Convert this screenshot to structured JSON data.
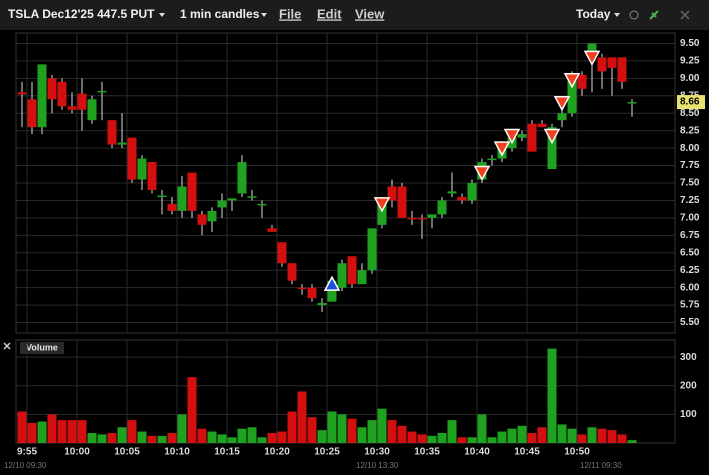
{
  "toolbar": {
    "symbol": "TSLA Dec12'25 447.5 PUT",
    "timeframe": "1 min candles",
    "menus": [
      "File",
      "Edit",
      "View"
    ],
    "range": "Today"
  },
  "volume_panel": {
    "title": "Volume"
  },
  "session_labels": [
    "12/10 09:30",
    "12/10 13:30",
    "12/11 09:30"
  ],
  "chart_data": {
    "type": "candlestick",
    "open": [
      8.8,
      8.7,
      8.3,
      9.0,
      8.95,
      8.6,
      8.78,
      8.4,
      8.8,
      8.4,
      8.05,
      8.15,
      7.55,
      7.8,
      7.3,
      7.2,
      7.1,
      7.65,
      7.05,
      6.95,
      7.15,
      7.25,
      7.35,
      7.3,
      7.2,
      6.85,
      6.65,
      6.35,
      6.0,
      6.0,
      5.75,
      5.8,
      6.0,
      6.45,
      6.05,
      6.25,
      6.9,
      7.45,
      7.45,
      7.0,
      7.0,
      7.0,
      7.05,
      7.35,
      7.3,
      7.25,
      7.55,
      7.85,
      7.85,
      8.0,
      8.15,
      8.35,
      8.35,
      7.7,
      8.4,
      8.5,
      9.05,
      9.4,
      9.3,
      9.3,
      9.3,
      8.66
    ],
    "high": [
      8.95,
      8.95,
      9.2,
      9.05,
      9.0,
      8.8,
      9.0,
      8.75,
      8.95,
      8.4,
      8.5,
      8.15,
      7.9,
      7.8,
      7.4,
      7.3,
      7.6,
      7.65,
      7.1,
      7.15,
      7.35,
      7.25,
      7.9,
      7.4,
      7.25,
      6.9,
      6.65,
      6.35,
      6.05,
      6.05,
      5.85,
      6.15,
      6.4,
      6.45,
      6.35,
      6.85,
      7.3,
      7.55,
      7.5,
      7.1,
      7.05,
      7.05,
      7.3,
      7.65,
      7.35,
      7.55,
      7.85,
      7.9,
      8.1,
      8.2,
      8.25,
      8.4,
      8.4,
      8.35,
      8.6,
      9.1,
      9.1,
      9.5,
      9.35,
      9.3,
      9.3,
      8.7
    ],
    "low": [
      8.3,
      8.2,
      8.2,
      8.5,
      8.55,
      8.5,
      8.25,
      8.35,
      8.4,
      8.0,
      8.0,
      7.5,
      7.4,
      7.35,
      7.05,
      7.05,
      7.0,
      7.0,
      6.75,
      6.8,
      7.0,
      7.1,
      7.3,
      7.25,
      7.0,
      6.8,
      6.3,
      6.05,
      5.9,
      5.8,
      5.65,
      5.8,
      5.95,
      6.0,
      6.05,
      6.2,
      6.85,
      7.15,
      7.0,
      6.9,
      6.7,
      6.85,
      7.0,
      7.3,
      7.2,
      7.2,
      7.5,
      7.75,
      7.8,
      7.95,
      8.1,
      7.95,
      8.3,
      7.7,
      8.3,
      8.45,
      8.75,
      8.8,
      8.85,
      8.75,
      8.85,
      8.45
    ],
    "close": [
      8.77,
      8.3,
      9.2,
      8.7,
      8.6,
      8.55,
      8.55,
      8.7,
      8.82,
      8.05,
      8.08,
      7.55,
      7.85,
      7.4,
      7.32,
      7.1,
      7.45,
      7.1,
      6.9,
      7.1,
      7.25,
      7.28,
      7.8,
      7.31,
      7.2,
      6.8,
      6.35,
      6.1,
      5.98,
      5.85,
      5.78,
      6.1,
      6.35,
      6.05,
      6.25,
      6.85,
      7.25,
      7.25,
      7.0,
      6.98,
      6.98,
      7.05,
      7.25,
      7.38,
      7.25,
      7.5,
      7.8,
      7.85,
      8.0,
      8.15,
      8.2,
      7.95,
      8.3,
      8.3,
      8.5,
      9.0,
      8.85,
      9.5,
      9.1,
      9.15,
      8.95,
      8.66
    ],
    "volume": [
      110,
      70,
      75,
      100,
      80,
      80,
      80,
      35,
      30,
      35,
      55,
      80,
      40,
      25,
      25,
      35,
      100,
      230,
      50,
      40,
      30,
      20,
      50,
      55,
      20,
      35,
      40,
      110,
      180,
      90,
      45,
      110,
      100,
      85,
      55,
      80,
      120,
      80,
      60,
      40,
      30,
      25,
      35,
      80,
      20,
      20,
      100,
      20,
      40,
      50,
      60,
      35,
      55,
      330,
      65,
      50,
      30,
      55,
      50,
      45,
      30,
      10
    ],
    "up_color": "#1fa21f",
    "down_color": "#d40f0f",
    "ylim": [
      5.35,
      9.65
    ],
    "yticks": [
      {
        "value": 9.5,
        "label": "9.50"
      },
      {
        "value": 9.25,
        "label": "9.25"
      },
      {
        "value": 9,
        "label": "9.00"
      },
      {
        "value": 8.75,
        "label": "8.75"
      },
      {
        "value": 8.5,
        "label": "8.50"
      },
      {
        "value": 8.25,
        "label": "8.25"
      },
      {
        "value": 8,
        "label": "8.00"
      },
      {
        "value": 7.75,
        "label": "7.75"
      },
      {
        "value": 7.5,
        "label": "7.50"
      },
      {
        "value": 7.25,
        "label": "7.25"
      },
      {
        "value": 7,
        "label": "7.00"
      },
      {
        "value": 6.75,
        "label": "6.75"
      },
      {
        "value": 6.5,
        "label": "6.50"
      },
      {
        "value": 6.25,
        "label": "6.25"
      },
      {
        "value": 6,
        "label": "6.00"
      },
      {
        "value": 5.75,
        "label": "5.75"
      },
      {
        "value": 5.5,
        "label": "5.50"
      }
    ],
    "y2lim": [
      0,
      360
    ],
    "y2ticks": [
      100,
      200,
      300
    ],
    "xticks": [
      {
        "value": 0.5,
        "label": "9:55"
      },
      {
        "value": 5.5,
        "label": "10:00"
      },
      {
        "value": 10.5,
        "label": "10:05"
      },
      {
        "value": 15.5,
        "label": "10:10"
      },
      {
        "value": 20.5,
        "label": "10:15"
      },
      {
        "value": 25.5,
        "label": "10:20"
      },
      {
        "value": 30.5,
        "label": "10:25"
      },
      {
        "value": 35.5,
        "label": "10:30"
      },
      {
        "value": 40.5,
        "label": "10:35"
      },
      {
        "value": 45.5,
        "label": "10:40"
      },
      {
        "value": 50.5,
        "label": "10:45"
      },
      {
        "value": 55.5,
        "label": "10:50"
      }
    ],
    "last_price": {
      "value": 8.66,
      "label": "8.66"
    },
    "markers": [
      {
        "index": 31,
        "price": 6.05,
        "side": "buy"
      },
      {
        "index": 36,
        "price": 7.2,
        "side": "sell"
      },
      {
        "index": 46,
        "price": 7.65,
        "side": "sell"
      },
      {
        "index": 48,
        "price": 8.0,
        "side": "sell"
      },
      {
        "index": 49,
        "price": 8.18,
        "side": "sell"
      },
      {
        "index": 53,
        "price": 8.18,
        "side": "sell"
      },
      {
        "index": 54,
        "price": 8.65,
        "side": "sell"
      },
      {
        "index": 55,
        "price": 8.98,
        "side": "sell"
      },
      {
        "index": 57,
        "price": 9.3,
        "side": "sell"
      }
    ],
    "grid": true
  }
}
